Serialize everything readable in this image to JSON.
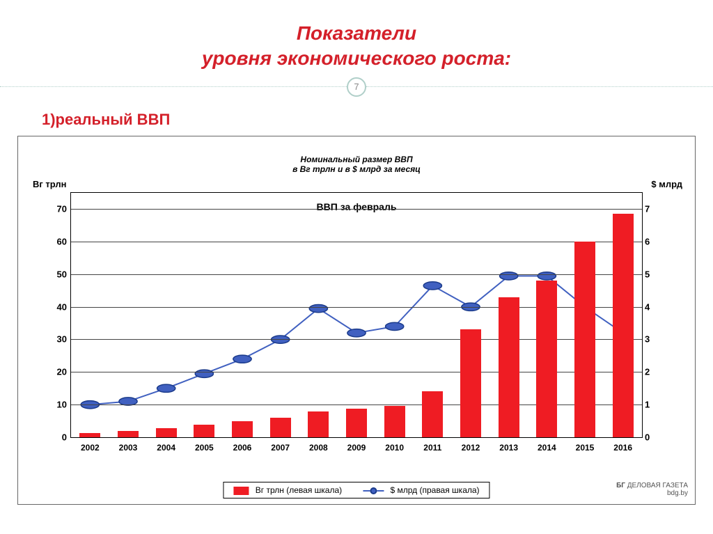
{
  "slide": {
    "title_line1": "Показатели",
    "title_line2": "уровня экономического роста:",
    "page_number": "7",
    "section_label": "1)реальный ВВП"
  },
  "chart": {
    "type": "bar+line",
    "title_line1": "Номинальный размер ВВП",
    "title_line2": "в Вг трлн и в $ млрд за месяц",
    "subtitle": "ВВП за февраль",
    "left_axis_label": "Вг трлн",
    "right_axis_label": "$ млрд",
    "left_ylim": [
      0,
      75
    ],
    "left_ticks": [
      0,
      10,
      20,
      30,
      40,
      50,
      60,
      70
    ],
    "right_ylim": [
      0,
      7.5
    ],
    "right_ticks": [
      0,
      1,
      2,
      3,
      4,
      5,
      6,
      7
    ],
    "categories": [
      "2002",
      "2003",
      "2004",
      "2005",
      "2006",
      "2007",
      "2008",
      "2009",
      "2010",
      "2011",
      "2012",
      "2013",
      "2014",
      "2015",
      "2016"
    ],
    "bars": {
      "values": [
        1.2,
        1.8,
        2.8,
        3.8,
        4.9,
        6.0,
        7.9,
        8.7,
        9.5,
        14.0,
        33.0,
        43.0,
        48.0,
        60.0,
        68.5
      ],
      "color": "#ef1c23",
      "width_frac": 0.55
    },
    "line": {
      "values": [
        1.0,
        1.1,
        1.5,
        1.95,
        2.4,
        3.0,
        3.95,
        3.2,
        3.4,
        4.65,
        4.0,
        4.95,
        4.95,
        4.0,
        3.2
      ],
      "stroke": "#4060c0",
      "stroke_width": 2,
      "marker_fill": "#4060c0",
      "marker_stroke": "#1a3a8a",
      "marker_radius": 6
    },
    "legend": {
      "bar_label": "Вг трлн (левая шкала)",
      "line_label": "$ млрд (правая шкала)"
    },
    "source_line1": "ДЕЛОВАЯ ГАЗЕТА",
    "source_line2": "bdg.by",
    "background_color": "#ffffff",
    "grid_color": "#444444",
    "title_fontsize": 12,
    "subtitle_fontsize": 14,
    "tick_fontsize": 13
  }
}
